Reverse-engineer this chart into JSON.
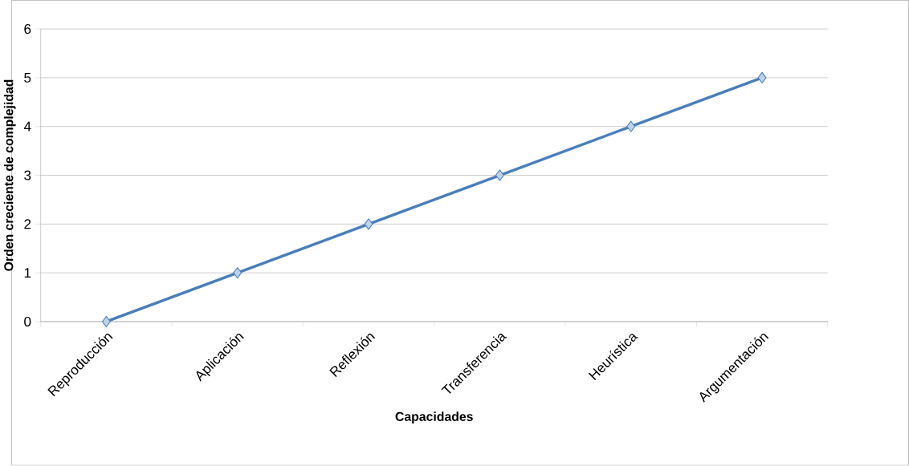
{
  "chart_data": {
    "type": "line",
    "xlabel": "Capacidades",
    "ylabel": "Orden creciente de complejidad",
    "categories": [
      "Reproducción",
      "Aplicación",
      "Reflexión",
      "Transferencia",
      "Heurística",
      "Argumentación"
    ],
    "series": [
      {
        "color": "#4a7ebb",
        "values": [
          0,
          1,
          2,
          3,
          4,
          5
        ]
      }
    ],
    "ylim": [
      0,
      6
    ],
    "yticks": [
      0,
      1,
      2,
      3,
      4,
      5,
      6
    ],
    "grid": "y",
    "marker": "diamond",
    "line_style": "solid"
  }
}
